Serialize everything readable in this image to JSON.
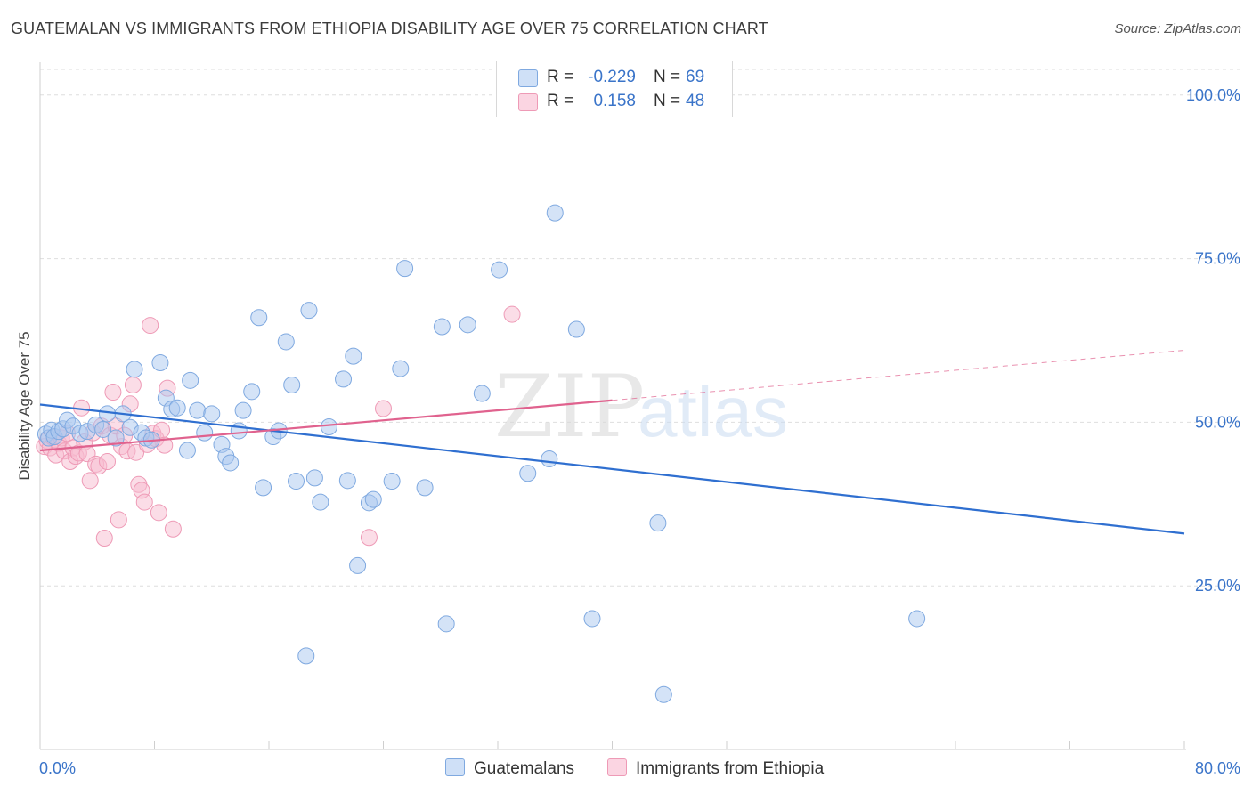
{
  "title": "GUATEMALAN VS IMMIGRANTS FROM ETHIOPIA DISABILITY AGE OVER 75 CORRELATION CHART",
  "source": "Source: ZipAtlas.com",
  "watermark": {
    "zip": "ZIP",
    "atlas": "atlas"
  },
  "legend": {
    "r_label": "R =",
    "n_label": "N =",
    "rows": [
      {
        "r": "-0.229",
        "n": "69"
      },
      {
        "r": "0.158",
        "n": "48"
      }
    ]
  },
  "colors": {
    "blue_fill": "#a9c8f0",
    "blue_stroke": "#7fa9e0",
    "blue_line": "#2f6fd0",
    "pink_fill": "#f7bcd0",
    "pink_stroke": "#ee9ab6",
    "pink_line": "#e0628e",
    "tick_text": "#3a74c9",
    "grid": "#dedede"
  },
  "chart_data": {
    "type": "scatter",
    "title": "GUATEMALAN VS IMMIGRANTS FROM ETHIOPIA DISABILITY AGE OVER 75 CORRELATION CHART",
    "xlabel": "",
    "ylabel": "Disability Age Over 75",
    "xlim": [
      0,
      80
    ],
    "ylim": [
      0,
      105
    ],
    "x_tick_labels": [
      "0.0%",
      "80.0%"
    ],
    "y_tick_labels": [
      "25.0%",
      "50.0%",
      "75.0%",
      "100.0%"
    ],
    "y_ticks": [
      25,
      50,
      75,
      100
    ],
    "grid": true,
    "legend_position": "top-center",
    "series": [
      {
        "name": "Guatemalans",
        "color": "#a9c8f0",
        "trend": {
          "x0": 0,
          "y0": 52.7,
          "x1": 80,
          "y1": 33.0,
          "solid_to": 80
        },
        "points": [
          [
            0.4,
            48.2
          ],
          [
            0.6,
            47.6
          ],
          [
            0.8,
            48.8
          ],
          [
            1.0,
            47.8
          ],
          [
            1.3,
            48.6
          ],
          [
            1.6,
            49.0
          ],
          [
            1.9,
            50.3
          ],
          [
            2.3,
            49.4
          ],
          [
            2.8,
            48.3
          ],
          [
            3.3,
            48.6
          ],
          [
            3.9,
            49.6
          ],
          [
            4.4,
            48.9
          ],
          [
            4.7,
            51.3
          ],
          [
            5.3,
            47.6
          ],
          [
            5.8,
            51.3
          ],
          [
            6.3,
            49.2
          ],
          [
            6.6,
            58.1
          ],
          [
            7.1,
            48.4
          ],
          [
            7.4,
            47.6
          ],
          [
            7.8,
            47.3
          ],
          [
            8.4,
            59.1
          ],
          [
            8.8,
            53.7
          ],
          [
            9.2,
            52.0
          ],
          [
            9.6,
            52.2
          ],
          [
            10.3,
            45.7
          ],
          [
            10.5,
            56.4
          ],
          [
            11.0,
            51.8
          ],
          [
            11.5,
            48.4
          ],
          [
            12.0,
            51.3
          ],
          [
            12.7,
            46.6
          ],
          [
            13.0,
            44.8
          ],
          [
            13.3,
            43.8
          ],
          [
            13.9,
            48.7
          ],
          [
            14.2,
            51.8
          ],
          [
            14.8,
            54.7
          ],
          [
            15.3,
            66.0
          ],
          [
            15.6,
            40.0
          ],
          [
            16.3,
            47.8
          ],
          [
            16.7,
            48.7
          ],
          [
            17.2,
            62.3
          ],
          [
            17.6,
            55.7
          ],
          [
            17.9,
            41.0
          ],
          [
            18.8,
            67.1
          ],
          [
            19.2,
            41.5
          ],
          [
            19.6,
            37.8
          ],
          [
            20.2,
            49.3
          ],
          [
            21.2,
            56.6
          ],
          [
            21.5,
            41.1
          ],
          [
            21.9,
            60.1
          ],
          [
            22.2,
            28.1
          ],
          [
            23.0,
            37.7
          ],
          [
            23.3,
            38.2
          ],
          [
            24.6,
            41.0
          ],
          [
            25.2,
            58.2
          ],
          [
            25.5,
            73.5
          ],
          [
            26.9,
            40.0
          ],
          [
            28.1,
            64.6
          ],
          [
            28.4,
            19.2
          ],
          [
            29.9,
            64.9
          ],
          [
            18.6,
            14.3
          ],
          [
            30.9,
            54.4
          ],
          [
            32.1,
            73.3
          ],
          [
            34.1,
            42.2
          ],
          [
            35.6,
            44.4
          ],
          [
            36.0,
            82.0
          ],
          [
            37.5,
            64.2
          ],
          [
            38.6,
            20.0
          ],
          [
            43.2,
            34.6
          ],
          [
            43.6,
            8.4
          ],
          [
            61.3,
            20.0
          ]
        ]
      },
      {
        "name": "Immigrants from Ethiopia",
        "color": "#f7bcd0",
        "trend": {
          "x0": 0,
          "y0": 45.7,
          "x1": 80,
          "y1": 61.0,
          "solid_to": 40
        },
        "points": [
          [
            0.3,
            46.3
          ],
          [
            0.5,
            47.2
          ],
          [
            0.7,
            46.1
          ],
          [
            0.9,
            47.7
          ],
          [
            1.1,
            45.0
          ],
          [
            1.3,
            46.8
          ],
          [
            1.5,
            47.6
          ],
          [
            1.7,
            45.6
          ],
          [
            1.9,
            48.3
          ],
          [
            2.1,
            44.0
          ],
          [
            2.3,
            46.1
          ],
          [
            2.5,
            44.8
          ],
          [
            2.7,
            45.3
          ],
          [
            2.9,
            52.2
          ],
          [
            3.1,
            47.0
          ],
          [
            3.3,
            45.2
          ],
          [
            3.5,
            41.1
          ],
          [
            3.7,
            48.4
          ],
          [
            3.9,
            43.6
          ],
          [
            4.1,
            43.3
          ],
          [
            4.3,
            49.4
          ],
          [
            4.5,
            32.3
          ],
          [
            4.7,
            44.0
          ],
          [
            4.9,
            48.0
          ],
          [
            5.1,
            54.6
          ],
          [
            5.3,
            49.4
          ],
          [
            5.5,
            35.1
          ],
          [
            5.7,
            46.3
          ],
          [
            5.9,
            48.0
          ],
          [
            6.1,
            45.6
          ],
          [
            6.3,
            52.8
          ],
          [
            6.5,
            55.7
          ],
          [
            6.7,
            45.4
          ],
          [
            6.9,
            40.5
          ],
          [
            7.1,
            39.6
          ],
          [
            7.3,
            37.8
          ],
          [
            7.5,
            46.6
          ],
          [
            7.7,
            64.8
          ],
          [
            7.9,
            48.3
          ],
          [
            8.1,
            47.5
          ],
          [
            8.3,
            36.2
          ],
          [
            8.5,
            48.8
          ],
          [
            8.7,
            46.5
          ],
          [
            8.9,
            55.2
          ],
          [
            9.3,
            33.7
          ],
          [
            23.0,
            32.4
          ],
          [
            24.0,
            52.1
          ],
          [
            33.0,
            66.5
          ]
        ]
      }
    ]
  }
}
